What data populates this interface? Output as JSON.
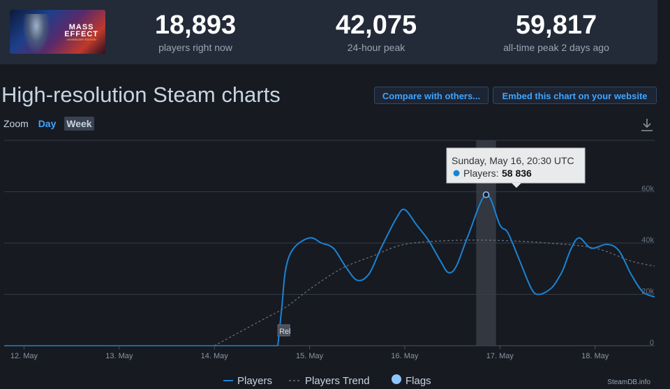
{
  "game": {
    "thumb_title": "MASS",
    "thumb_subtitle": "EFFECT",
    "thumb_edition": "LEGENDARY EDITION"
  },
  "stats": [
    {
      "value": "18,893",
      "label": "players right now"
    },
    {
      "value": "42,075",
      "label": "24-hour peak"
    },
    {
      "value": "59,817",
      "label": "all-time peak 2 days ago"
    }
  ],
  "section_title": "High-resolution Steam charts",
  "buttons": {
    "compare": "Compare with others...",
    "embed": "Embed this chart on your website"
  },
  "zoom": {
    "label": "Zoom",
    "day": "Day",
    "week": "Week"
  },
  "tooltip": {
    "date": "Sunday, May 16, 20:30 UTC",
    "series_label": "Players:",
    "value": "58 836"
  },
  "release_flag": "Rel",
  "credit": "SteamDB.info",
  "colors": {
    "players": "#1a84d4",
    "trend": "#6b7380",
    "flag": "#8ec5ff",
    "accent": "#3ea6ff"
  },
  "chart_data": {
    "type": "line",
    "xlabel": "",
    "ylabel": "",
    "ylim": [
      0,
      60000
    ],
    "xlim": [
      "2021-05-11 19:00",
      "2021-05-18 15:00"
    ],
    "x_ticks": [
      "12. May",
      "13. May",
      "14. May",
      "15. May",
      "16. May",
      "17. May",
      "18. May"
    ],
    "y_ticks": [
      {
        "value": 0,
        "label": "0"
      },
      {
        "value": 20000,
        "label": "20k"
      },
      {
        "value": 40000,
        "label": "40k"
      },
      {
        "value": 60000,
        "label": "60k"
      }
    ],
    "grid": true,
    "legend": {
      "position": "bottom",
      "items": [
        "Players",
        "Players Trend",
        "Flags"
      ]
    },
    "highlight": {
      "start": "2021-05-16 18:00",
      "end": "2021-05-16 23:00"
    },
    "series": [
      {
        "name": "Players",
        "style": "solid",
        "points": [
          [
            "2021-05-14 16:00",
            0
          ],
          [
            "2021-05-14 17:00",
            15000
          ],
          [
            "2021-05-14 18:00",
            30000
          ],
          [
            "2021-05-14 20:00",
            38000
          ],
          [
            "2021-05-15 00:00",
            42000
          ],
          [
            "2021-05-15 03:00",
            40000
          ],
          [
            "2021-05-15 06:00",
            38000
          ],
          [
            "2021-05-15 09:00",
            31000
          ],
          [
            "2021-05-15 12:00",
            25500
          ],
          [
            "2021-05-15 15:00",
            28000
          ],
          [
            "2021-05-15 18:00",
            38000
          ],
          [
            "2021-05-15 22:00",
            50000
          ],
          [
            "2021-05-16 00:00",
            53000
          ],
          [
            "2021-05-16 03:00",
            47000
          ],
          [
            "2021-05-16 06:00",
            41000
          ],
          [
            "2021-05-16 09:00",
            33000
          ],
          [
            "2021-05-16 11:00",
            28500
          ],
          [
            "2021-05-16 13:00",
            31000
          ],
          [
            "2021-05-16 16:00",
            43000
          ],
          [
            "2021-05-16 20:30",
            58836
          ],
          [
            "2021-05-17 00:00",
            47000
          ],
          [
            "2021-05-17 02:00",
            44000
          ],
          [
            "2021-05-17 05:00",
            33000
          ],
          [
            "2021-05-17 08:00",
            22000
          ],
          [
            "2021-05-17 10:00",
            20000
          ],
          [
            "2021-05-17 13:00",
            22500
          ],
          [
            "2021-05-17 15:00",
            27000
          ],
          [
            "2021-05-17 16:00",
            30000
          ],
          [
            "2021-05-17 18:00",
            38000
          ],
          [
            "2021-05-17 20:00",
            42000
          ],
          [
            "2021-05-17 23:00",
            38000
          ],
          [
            "2021-05-18 03:00",
            39500
          ],
          [
            "2021-05-18 06:00",
            37000
          ],
          [
            "2021-05-18 09:00",
            28000
          ],
          [
            "2021-05-18 12:00",
            21000
          ],
          [
            "2021-05-18 15:00",
            19000
          ]
        ]
      },
      {
        "name": "Players Trend",
        "style": "dashed",
        "points": [
          [
            "2021-05-14 00:00",
            0
          ],
          [
            "2021-05-14 12:00",
            10000
          ],
          [
            "2021-05-14 18:00",
            15000
          ],
          [
            "2021-05-15 00:00",
            22000
          ],
          [
            "2021-05-15 08:00",
            30000
          ],
          [
            "2021-05-15 16:00",
            35000
          ],
          [
            "2021-05-16 00:00",
            39500
          ],
          [
            "2021-05-16 12:00",
            41000
          ],
          [
            "2021-05-17 00:00",
            41000
          ],
          [
            "2021-05-17 12:00",
            40000
          ],
          [
            "2021-05-18 00:00",
            38000
          ],
          [
            "2021-05-18 09:00",
            33000
          ],
          [
            "2021-05-18 15:00",
            31000
          ]
        ]
      }
    ],
    "flags": [
      {
        "x": "2021-05-14 16:00",
        "label": "Rel"
      }
    ]
  }
}
